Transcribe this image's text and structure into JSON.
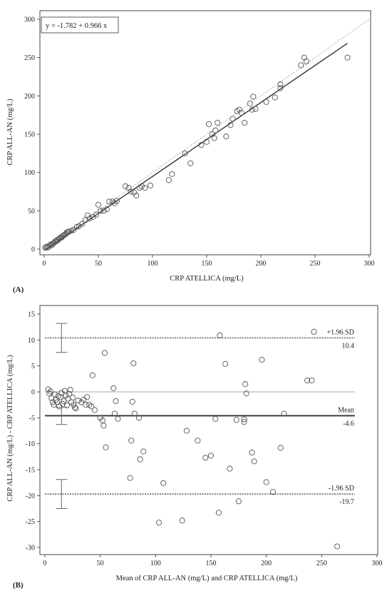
{
  "chart_data": [
    {
      "type": "scatter",
      "panel_label": "(A)",
      "xlabel": "CRP ATELLICA (mg/L)",
      "ylabel": "CRP ALL-AN (mg/L)",
      "xlim": [
        0,
        300
      ],
      "ylim": [
        0,
        300
      ],
      "xticks": [
        0,
        50,
        100,
        150,
        200,
        250,
        300
      ],
      "yticks": [
        0,
        50,
        100,
        150,
        200,
        250,
        300
      ],
      "equation": "y = -1.782 + 0.966 x",
      "regression": {
        "intercept": -1.782,
        "slope": 0.966,
        "x_range": [
          0,
          280
        ]
      },
      "identity_line": {
        "x_range": [
          0,
          300
        ]
      },
      "grid": false,
      "points": [
        [
          1,
          2
        ],
        [
          2,
          3
        ],
        [
          3,
          2
        ],
        [
          4,
          3
        ],
        [
          5,
          5
        ],
        [
          6,
          6
        ],
        [
          7,
          5
        ],
        [
          8,
          7
        ],
        [
          9,
          8
        ],
        [
          10,
          10
        ],
        [
          11,
          10
        ],
        [
          12,
          12
        ],
        [
          13,
          12
        ],
        [
          14,
          14
        ],
        [
          15,
          15
        ],
        [
          16,
          15
        ],
        [
          17,
          17
        ],
        [
          18,
          18
        ],
        [
          19,
          19
        ],
        [
          20,
          20
        ],
        [
          21,
          22
        ],
        [
          22,
          22
        ],
        [
          23,
          23
        ],
        [
          25,
          24
        ],
        [
          27,
          25
        ],
        [
          30,
          29
        ],
        [
          32,
          30
        ],
        [
          35,
          33
        ],
        [
          38,
          38
        ],
        [
          40,
          44
        ],
        [
          42,
          40
        ],
        [
          45,
          42
        ],
        [
          48,
          45
        ],
        [
          50,
          58
        ],
        [
          52,
          50
        ],
        [
          55,
          50
        ],
        [
          58,
          52
        ],
        [
          60,
          62
        ],
        [
          63,
          62
        ],
        [
          65,
          60
        ],
        [
          67,
          63
        ],
        [
          75,
          82
        ],
        [
          78,
          80
        ],
        [
          80,
          75
        ],
        [
          83,
          74
        ],
        [
          85,
          70
        ],
        [
          88,
          80
        ],
        [
          90,
          82
        ],
        [
          93,
          80
        ],
        [
          98,
          83
        ],
        [
          115,
          90
        ],
        [
          118,
          98
        ],
        [
          130,
          125
        ],
        [
          135,
          112
        ],
        [
          145,
          136
        ],
        [
          150,
          140
        ],
        [
          152,
          163
        ],
        [
          155,
          150
        ],
        [
          157,
          145
        ],
        [
          158,
          155
        ],
        [
          160,
          165
        ],
        [
          168,
          147
        ],
        [
          172,
          162
        ],
        [
          174,
          170
        ],
        [
          178,
          180
        ],
        [
          180,
          182
        ],
        [
          182,
          178
        ],
        [
          185,
          165
        ],
        [
          190,
          190
        ],
        [
          192,
          182
        ],
        [
          193,
          199
        ],
        [
          195,
          183
        ],
        [
          205,
          192
        ],
        [
          213,
          198
        ],
        [
          218,
          210
        ],
        [
          218,
          215
        ],
        [
          237,
          240
        ],
        [
          240,
          250
        ],
        [
          242,
          245
        ],
        [
          280,
          250
        ]
      ]
    },
    {
      "type": "scatter",
      "panel_label": "(B)",
      "xlabel": "Mean of CRP ALL-AN (mg/L) and CRP ATELLICA (mg/L)",
      "ylabel": "CRP ALL-AN (mg/L) - CRP ATELLICA (mg/L)",
      "xlim": [
        0,
        300
      ],
      "ylim": [
        -30,
        15
      ],
      "xticks": [
        0,
        50,
        100,
        150,
        200,
        250,
        300
      ],
      "yticks": [
        15,
        10,
        5,
        0,
        -5,
        -10,
        -15,
        -20,
        -25,
        -30
      ],
      "grid": false,
      "reference_lines": [
        {
          "value": 10.4,
          "label": "+1.96 SD",
          "value_label": "10.4",
          "style": "dotted"
        },
        {
          "value": -4.6,
          "label": "Mean",
          "value_label": "-4.6",
          "style": "solid"
        },
        {
          "value": -19.7,
          "label": "-1.96 SD",
          "value_label": "-19.7",
          "style": "dotted"
        },
        {
          "value": 0,
          "label": "",
          "value_label": "",
          "style": "zero"
        }
      ],
      "ci_bars": [
        {
          "x": 15,
          "low": 7.6,
          "high": 13.2
        },
        {
          "x": 15,
          "low": -6.3,
          "high": -3.0
        },
        {
          "x": 15,
          "low": -22.5,
          "high": -16.9
        }
      ],
      "points": [
        [
          3,
          0.5
        ],
        [
          4,
          -0.3
        ],
        [
          5,
          0.1
        ],
        [
          6,
          -1.2
        ],
        [
          7,
          -2.0
        ],
        [
          8,
          -2.5
        ],
        [
          9,
          -0.5
        ],
        [
          10,
          -1.5
        ],
        [
          11,
          -2.0
        ],
        [
          12,
          -0.8
        ],
        [
          13,
          -2.8
        ],
        [
          14,
          -1.0
        ],
        [
          15,
          -0.2
        ],
        [
          16,
          -2.3
        ],
        [
          17,
          -1.8
        ],
        [
          18,
          0.2
        ],
        [
          19,
          -0.7
        ],
        [
          20,
          -2.6
        ],
        [
          21,
          -1.3
        ],
        [
          22,
          -0.4
        ],
        [
          23,
          0.4
        ],
        [
          24,
          -2.0
        ],
        [
          25,
          -1.1
        ],
        [
          26,
          -2.5
        ],
        [
          27,
          -3.0
        ],
        [
          28,
          -3.2
        ],
        [
          30,
          -1.7
        ],
        [
          33,
          -2.0
        ],
        [
          35,
          -1.5
        ],
        [
          37,
          -2.5
        ],
        [
          38,
          -1.0
        ],
        [
          40,
          -2.5
        ],
        [
          42,
          -2.8
        ],
        [
          43,
          3.2
        ],
        [
          45,
          -3.5
        ],
        [
          50,
          -5.0
        ],
        [
          52,
          -5.5
        ],
        [
          53,
          -6.5
        ],
        [
          54,
          7.5
        ],
        [
          55,
          -10.7
        ],
        [
          62,
          0.7
        ],
        [
          63,
          -4.2
        ],
        [
          64,
          -1.8
        ],
        [
          66,
          -5.2
        ],
        [
          77,
          -16.6
        ],
        [
          78,
          -9.4
        ],
        [
          79,
          -1.9
        ],
        [
          80,
          5.5
        ],
        [
          81,
          -4.2
        ],
        [
          85,
          -5.0
        ],
        [
          86,
          -13.0
        ],
        [
          89,
          -11.5
        ],
        [
          103,
          -25.2
        ],
        [
          107,
          -17.6
        ],
        [
          124,
          -24.8
        ],
        [
          128,
          -7.5
        ],
        [
          138,
          -9.4
        ],
        [
          145,
          -12.7
        ],
        [
          150,
          -12.3
        ],
        [
          154,
          -5.2
        ],
        [
          157,
          -23.3
        ],
        [
          158,
          10.9
        ],
        [
          163,
          5.4
        ],
        [
          167,
          -14.8
        ],
        [
          173,
          -5.4
        ],
        [
          175,
          -21.1
        ],
        [
          180,
          -5.8
        ],
        [
          180,
          -5.3
        ],
        [
          181,
          1.5
        ],
        [
          182,
          -0.3
        ],
        [
          187,
          -11.7
        ],
        [
          189,
          -13.4
        ],
        [
          196,
          6.2
        ],
        [
          200,
          -17.4
        ],
        [
          206,
          -19.3
        ],
        [
          213,
          -10.8
        ],
        [
          216,
          -4.2
        ],
        [
          237,
          2.2
        ],
        [
          241,
          2.2
        ],
        [
          243,
          11.6
        ],
        [
          264,
          -29.8
        ]
      ]
    }
  ]
}
